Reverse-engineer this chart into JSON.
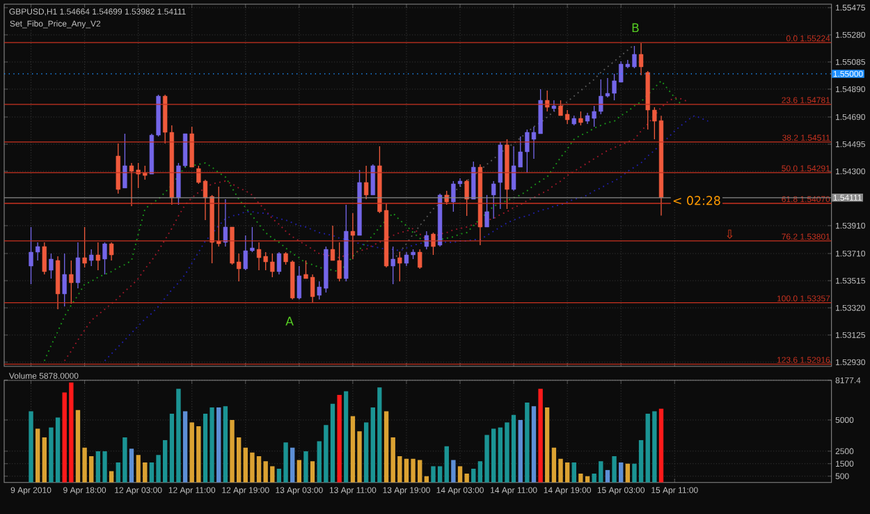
{
  "chart_data": [
    {
      "type": "candlestick",
      "title": "GBPUSD,H1  1.54664 1.54699 1.53982 1.54111",
      "subtitle": "Set_Fibo_Price_Any_V2",
      "categories": [
        null,
        null,
        null,
        null,
        null,
        null,
        null,
        null,
        null,
        null,
        null,
        null,
        null,
        null,
        null,
        null,
        null,
        null,
        null,
        null,
        null,
        null,
        null,
        null,
        null,
        null,
        null,
        null,
        null,
        null,
        null,
        null,
        null,
        null,
        null,
        null,
        null,
        null,
        null,
        null,
        null,
        null,
        null,
        null,
        null,
        null,
        null,
        null,
        null,
        null,
        null,
        null,
        null,
        null,
        null,
        null,
        null,
        null,
        null,
        null,
        null,
        null,
        null,
        null,
        null,
        null,
        null,
        null,
        null,
        null,
        null,
        null,
        null,
        null,
        null,
        null,
        null,
        null,
        null,
        null,
        null,
        null,
        null,
        null,
        null,
        null,
        null,
        null,
        null,
        null,
        null,
        null,
        null,
        null,
        null,
        null,
        null,
        null,
        null,
        null,
        null,
        null,
        null,
        null,
        null,
        null,
        null,
        null,
        null,
        null,
        null,
        null,
        null,
        null,
        null,
        null,
        null,
        null,
        null,
        null
      ],
      "ohlc": [
        [
          1.5362,
          1.539,
          1.5349,
          1.5372
        ],
        [
          1.5372,
          1.5379,
          1.5366,
          1.5376
        ],
        [
          1.5376,
          1.5379,
          1.5356,
          1.5358
        ],
        [
          1.5359,
          1.5371,
          1.5353,
          1.5367
        ],
        [
          1.5366,
          1.5369,
          1.5331,
          1.5342
        ],
        [
          1.5342,
          1.5371,
          1.5333,
          1.5356
        ],
        [
          1.5356,
          1.5366,
          1.5335,
          1.535
        ],
        [
          1.535,
          1.5379,
          1.5346,
          1.5368
        ],
        [
          1.5368,
          1.539,
          1.5361,
          1.5364
        ],
        [
          1.5366,
          1.5374,
          1.5362,
          1.537
        ],
        [
          1.537,
          1.5379,
          1.5359,
          1.5366
        ],
        [
          1.5367,
          1.5379,
          1.5356,
          1.5378
        ],
        [
          1.5378,
          1.5379,
          1.5366,
          1.537
        ],
        [
          1.5441,
          1.545,
          1.5414,
          1.5417
        ],
        [
          1.5418,
          1.5457,
          1.5418,
          1.5434
        ],
        [
          1.5434,
          1.5436,
          1.5405,
          1.543
        ],
        [
          1.5431,
          1.5436,
          1.5418,
          1.5428
        ],
        [
          1.5429,
          1.5434,
          1.5424,
          1.5427
        ],
        [
          1.5428,
          1.5457,
          1.5428,
          1.5456
        ],
        [
          1.5456,
          1.5485,
          1.5455,
          1.5484
        ],
        [
          1.5484,
          1.5485,
          1.545,
          1.5458
        ],
        [
          1.5458,
          1.5463,
          1.5406,
          1.5411
        ],
        [
          1.5411,
          1.5436,
          1.5406,
          1.5434
        ],
        [
          1.5434,
          1.5457,
          1.5433,
          1.5457
        ],
        [
          1.5457,
          1.5462,
          1.5433,
          1.5433
        ],
        [
          1.5432,
          1.5434,
          1.5421,
          1.5422
        ],
        [
          1.5423,
          1.5424,
          1.5395,
          1.5411
        ],
        [
          1.5412,
          1.5413,
          1.5364,
          1.5379
        ],
        [
          1.538,
          1.5419,
          1.5376,
          1.5378
        ],
        [
          1.5379,
          1.541,
          1.5376,
          1.539
        ],
        [
          1.539,
          1.539,
          1.5363,
          1.5364
        ],
        [
          1.5365,
          1.5371,
          1.5351,
          1.536
        ],
        [
          1.536,
          1.5384,
          1.5359,
          1.5373
        ],
        [
          1.5373,
          1.539,
          1.5372,
          1.5375
        ],
        [
          1.5374,
          1.5379,
          1.5359,
          1.5368
        ],
        [
          1.5369,
          1.5372,
          1.5359,
          1.5365
        ],
        [
          1.5365,
          1.5371,
          1.5354,
          1.5358
        ],
        [
          1.5358,
          1.5372,
          1.5356,
          1.5371
        ],
        [
          1.5371,
          1.5372,
          1.5363,
          1.5365
        ],
        [
          1.5365,
          1.5366,
          1.5338,
          1.5339
        ],
        [
          1.5339,
          1.5362,
          1.5338,
          1.5355
        ],
        [
          1.5356,
          1.5366,
          1.5353,
          1.5353
        ],
        [
          1.5354,
          1.5356,
          1.5336,
          1.534
        ],
        [
          1.5341,
          1.5351,
          1.5338,
          1.5347
        ],
        [
          1.5346,
          1.5376,
          1.5343,
          1.5374
        ],
        [
          1.5374,
          1.5391,
          1.5366,
          1.5366
        ],
        [
          1.5366,
          1.5379,
          1.5351,
          1.5353
        ],
        [
          1.5353,
          1.5406,
          1.5351,
          1.5387
        ],
        [
          1.5387,
          1.54,
          1.5367,
          1.5384
        ],
        [
          1.5384,
          1.5431,
          1.5384,
          1.5422
        ],
        [
          1.5422,
          1.5434,
          1.541,
          1.5413
        ],
        [
          1.5413,
          1.5435,
          1.5413,
          1.5434
        ],
        [
          1.5434,
          1.5448,
          1.54,
          1.5401
        ],
        [
          1.5402,
          1.5407,
          1.5361,
          1.5362
        ],
        [
          1.5362,
          1.5376,
          1.5349,
          1.5367
        ],
        [
          1.5368,
          1.5372,
          1.5351,
          1.5364
        ],
        [
          1.5364,
          1.5372,
          1.5362,
          1.537
        ],
        [
          1.537,
          1.5374,
          1.5367,
          1.5372
        ],
        [
          1.5372,
          1.5374,
          1.536,
          1.5361
        ],
        [
          1.5376,
          1.5387,
          1.5374,
          1.5384
        ],
        [
          1.5385,
          1.5386,
          1.537,
          1.5376
        ],
        [
          1.5377,
          1.5414,
          1.5376,
          1.5413
        ],
        [
          1.5413,
          1.5416,
          1.5406,
          1.5408
        ],
        [
          1.5408,
          1.5423,
          1.5401,
          1.5421
        ],
        [
          1.5421,
          1.5425,
          1.5419,
          1.5423
        ],
        [
          1.5423,
          1.5424,
          1.5398,
          1.541
        ],
        [
          1.541,
          1.5437,
          1.541,
          1.5433
        ],
        [
          1.5433,
          1.5435,
          1.5377,
          1.539
        ],
        [
          1.539,
          1.5413,
          1.539,
          1.5401
        ],
        [
          1.5413,
          1.5423,
          1.5396,
          1.5421
        ],
        [
          1.5422,
          1.5451,
          1.5403,
          1.5449
        ],
        [
          1.5449,
          1.5453,
          1.5403,
          1.5417
        ],
        [
          1.5417,
          1.5448,
          1.5416,
          1.5434
        ],
        [
          1.5433,
          1.5455,
          1.5433,
          1.5444
        ],
        [
          1.5444,
          1.546,
          1.5429,
          1.5458
        ],
        [
          1.5453,
          1.5462,
          1.5439,
          1.5458
        ],
        [
          1.5457,
          1.5489,
          1.5457,
          1.5481
        ],
        [
          1.5481,
          1.5488,
          1.5473,
          1.5476
        ],
        [
          1.5475,
          1.5481,
          1.5473,
          1.5477
        ],
        [
          1.5477,
          1.5481,
          1.547,
          1.547
        ],
        [
          1.5471,
          1.5474,
          1.5464,
          1.5467
        ],
        [
          1.5464,
          1.547,
          1.5463,
          1.5468
        ],
        [
          1.5468,
          1.5473,
          1.5463,
          1.5465
        ],
        [
          1.5466,
          1.5472,
          1.5464,
          1.547
        ],
        [
          1.5468,
          1.5477,
          1.5462,
          1.5473
        ],
        [
          1.5473,
          1.5496,
          1.5471,
          1.5484
        ],
        [
          1.5484,
          1.5497,
          1.5483,
          1.5486
        ],
        [
          1.5486,
          1.55,
          1.5481,
          1.5495
        ],
        [
          1.5494,
          1.5509,
          1.5494,
          1.5507
        ],
        [
          1.5505,
          1.551,
          1.5504,
          1.5507
        ],
        [
          1.5505,
          1.552,
          1.5504,
          1.5514
        ],
        [
          1.5514,
          1.5522,
          1.5499,
          1.5505
        ],
        [
          1.5501,
          1.5502,
          1.546,
          1.5474
        ],
        [
          1.5474,
          1.5476,
          1.5453,
          1.5466
        ],
        [
          1.54664,
          1.54699,
          1.53982,
          1.54111
        ],
        null,
        null,
        null,
        null,
        null,
        null,
        null,
        null,
        null,
        null,
        null,
        null,
        null,
        null,
        null,
        null,
        null,
        null,
        null,
        null,
        null,
        null,
        null,
        null,
        null
      ],
      "colors": [
        "#7466e8",
        "#7466e8",
        "#f05a3c",
        "#7466e8",
        "#f05a3c",
        "#7466e8",
        "#f05a3c",
        "#7466e8",
        "#f05a3c",
        "#7466e8",
        "#f05a3c",
        "#7466e8",
        "#f05a3c",
        "#f05a3c",
        "#7466e8",
        "#f05a3c",
        "#f05a3c",
        "#f05a3c",
        "#7466e8",
        "#7466e8",
        "#f05a3c",
        "#f05a3c",
        "#7466e8",
        "#7466e8",
        "#f05a3c",
        "#f05a3c",
        "#f05a3c",
        "#f05a3c",
        "#f05a3c",
        "#7466e8",
        "#f05a3c",
        "#f05a3c",
        "#7466e8",
        "#7466e8",
        "#f05a3c",
        "#f05a3c",
        "#f05a3c",
        "#7466e8",
        "#f05a3c",
        "#f05a3c",
        "#7466e8",
        "#f05a3c",
        "#f05a3c",
        "#7466e8",
        "#7466e8",
        "#f05a3c",
        "#f05a3c",
        "#7466e8",
        "#f05a3c",
        "#7466e8",
        "#f05a3c",
        "#7466e8",
        "#f05a3c",
        "#f05a3c",
        "#7466e8",
        "#f05a3c",
        "#7466e8",
        "#7466e8",
        "#f05a3c",
        "#7466e8",
        "#f05a3c",
        "#7466e8",
        "#f05a3c",
        "#7466e8",
        "#7466e8",
        "#f05a3c",
        "#7466e8",
        "#f05a3c",
        "#7466e8",
        "#7466e8",
        "#7466e8",
        "#f05a3c",
        "#7466e8",
        "#7466e8",
        "#7466e8",
        "#7466e8",
        "#7466e8",
        "#f05a3c",
        "#7466e8",
        "#f05a3c",
        "#f05a3c",
        "#7466e8",
        "#f05a3c",
        "#7466e8",
        "#7466e8",
        "#7466e8",
        "#7466e8",
        "#7466e8",
        "#7466e8",
        "#7466e8",
        "#7466e8",
        "#f05a3c",
        "#f05a3c",
        "#f05a3c",
        "#f05a3c",
        null,
        null,
        null,
        null,
        null,
        null,
        null,
        null,
        null,
        null,
        null,
        null,
        null,
        null,
        null,
        null,
        null,
        null,
        null,
        null,
        null,
        null,
        null,
        null,
        null
      ],
      "series": [
        {
          "type": "line",
          "color": "#1a9a1a",
          "line_style": "dotted",
          "values": [
            null,
            null,
            1.5294,
            1.5305,
            1.5315,
            1.5326,
            1.5334,
            1.5341,
            1.5349,
            1.5351,
            1.5354,
            1.5356,
            1.5358,
            1.5361,
            1.5363,
            1.5366,
            1.5385,
            1.5403,
            1.5407,
            1.541,
            1.5415,
            1.542,
            1.5427,
            1.5433,
            1.5434,
            1.5435,
            1.5436,
            1.5433,
            1.5429,
            1.5426,
            1.5418,
            1.541,
            1.5404,
            1.5398,
            1.5392,
            1.5386,
            1.5382,
            1.5379,
            1.5375,
            1.5371,
            1.5368,
            1.5364,
            1.5363,
            1.5361,
            1.536,
            1.5359,
            1.5358,
            1.5363,
            1.5369,
            1.5374,
            1.5379,
            1.5384,
            1.539,
            1.5395,
            1.54,
            1.5395,
            1.5391,
            1.5386,
            1.5382,
            1.5378,
            1.5379,
            1.5381,
            1.5382,
            1.5383,
            1.5385,
            1.5386,
            1.5391,
            1.5396,
            1.54,
            1.5405,
            1.5407,
            1.5409,
            1.5411,
            1.5413,
            1.5416,
            1.542,
            1.5423,
            1.5426,
            1.5433,
            1.544,
            1.5446,
            1.5453,
            1.5456,
            1.5458,
            1.5461,
            1.5463,
            1.5465,
            1.5466,
            1.547,
            1.5473,
            1.5477,
            1.548,
            1.5485,
            1.549,
            1.5495,
            1.5489,
            1.5483,
            1.5478,
            null,
            null,
            null,
            null,
            null,
            null,
            null,
            null,
            null,
            null,
            null,
            null,
            null,
            null,
            null,
            null,
            null,
            null,
            null,
            null,
            null,
            null
          ]
        },
        {
          "type": "line",
          "color": "#a0182a",
          "line_style": "dotted",
          "values": [
            null,
            null,
            null,
            null,
            null,
            1.5294,
            1.5301,
            1.5309,
            1.5316,
            1.5323,
            1.5327,
            1.5331,
            1.5335,
            1.5339,
            1.5344,
            1.5348,
            1.5353,
            1.536,
            1.5366,
            1.5373,
            1.5381,
            1.5389,
            1.5398,
            1.5406,
            1.5411,
            1.5415,
            1.5418,
            1.5421,
            1.5422,
            1.5423,
            1.5421,
            1.5418,
            1.5416,
            1.5413,
            1.5407,
            1.5402,
            1.5396,
            1.5392,
            1.5387,
            1.5383,
            1.538,
            1.5377,
            1.5374,
            1.5371,
            1.537,
            1.5369,
            1.5368,
            1.537,
            1.5371,
            1.5373,
            1.5374,
            1.5377,
            1.5379,
            1.5382,
            1.5384,
            1.5386,
            1.5387,
            1.5389,
            1.5385,
            1.5381,
            1.5383,
            1.5385,
            1.5386,
            1.5388,
            1.5389,
            1.539,
            1.5392,
            1.5393,
            1.5395,
            1.5396,
            1.5399,
            1.5401,
            1.5404,
            1.5406,
            1.5409,
            1.5411,
            1.5414,
            1.5416,
            1.542,
            1.5423,
            1.5427,
            1.543,
            1.5433,
            1.5436,
            1.5439,
            1.5442,
            1.5445,
            1.5447,
            1.5449,
            1.5451,
            1.5453,
            1.5459,
            1.5464,
            1.547,
            1.5476,
            1.548,
            1.5483,
            1.5482,
            1.548,
            null,
            null,
            null,
            null,
            null,
            null,
            null,
            null,
            null,
            null,
            null,
            null,
            null,
            null,
            null,
            null,
            null,
            null,
            null,
            null,
            null
          ]
        },
        {
          "type": "line",
          "color": "#2020a8",
          "line_style": "dotted",
          "values": [
            null,
            null,
            null,
            null,
            null,
            null,
            null,
            null,
            null,
            null,
            null,
            1.5294,
            1.5299,
            1.5304,
            1.5309,
            1.5314,
            1.5319,
            1.5324,
            1.5328,
            1.5333,
            1.5339,
            1.5345,
            1.535,
            1.5356,
            1.5364,
            1.5372,
            1.538,
            1.5385,
            1.5391,
            1.5396,
            1.5398,
            1.5399,
            1.5401,
            1.5401,
            1.54,
            1.54,
            1.5398,
            1.5396,
            1.5395,
            1.5393,
            1.5391,
            1.539,
            1.5388,
            1.5386,
            1.5385,
            1.5384,
            1.5382,
            1.5381,
            1.538,
            1.5378,
            1.5377,
            1.5376,
            1.5375,
            1.5374,
            1.5374,
            1.5373,
            1.5375,
            1.5377,
            1.5378,
            1.538,
            1.538,
            1.538,
            1.5379,
            1.5379,
            1.538,
            1.538,
            1.5381,
            1.5381,
            1.5384,
            1.5387,
            1.539,
            1.5393,
            1.5395,
            1.5397,
            1.5398,
            1.54,
            1.5402,
            1.5403,
            1.5405,
            1.5406,
            1.5408,
            1.541,
            1.5411,
            1.5413,
            1.5416,
            1.5418,
            1.5421,
            1.5423,
            1.5426,
            1.543,
            1.5433,
            1.5436,
            1.5441,
            1.5445,
            1.545,
            1.5454,
            1.5459,
            1.5463,
            1.5467,
            1.547,
            1.5468,
            1.5466,
            null,
            null,
            null,
            null,
            null,
            null,
            null,
            null,
            null,
            null,
            null,
            null,
            null,
            null,
            null,
            null,
            null,
            null
          ]
        },
        {
          "type": "line",
          "color": "#5a5a5a",
          "line_style": "dotted",
          "values": [
            null,
            null,
            null,
            null,
            null,
            null,
            null,
            null,
            null,
            null,
            null,
            null,
            null,
            null,
            null,
            null,
            null,
            null,
            null,
            null,
            null,
            null,
            null,
            null,
            null,
            null,
            null,
            null,
            null,
            null,
            null,
            null,
            null,
            null,
            null,
            null,
            null,
            null,
            null,
            null,
            null,
            null,
            null,
            null,
            null,
            null,
            null,
            null,
            null,
            null,
            null,
            null,
            null,
            null,
            1.5366,
            1.5372,
            1.5378,
            1.5385,
            1.5391,
            1.5397,
            1.5403,
            1.5407,
            1.5411,
            1.5415,
            1.5419,
            1.5423,
            1.5427,
            1.5431,
            1.5435,
            1.5439,
            1.5443,
            1.5447,
            1.545,
            1.5454,
            1.5458,
            1.5462,
            1.5465,
            1.5469,
            1.5473,
            1.5476,
            1.548,
            1.5484,
            1.5488,
            1.5492,
            1.5496,
            1.5501,
            1.5505,
            1.5509,
            1.5513,
            1.5517,
            1.5521,
            null,
            null,
            null,
            null,
            null,
            null,
            null,
            null,
            null,
            null,
            null,
            null,
            null,
            null,
            null,
            null,
            null,
            null,
            null,
            null,
            null,
            null,
            null,
            null,
            null,
            null,
            null,
            null,
            null
          ]
        }
      ],
      "ylim": [
        1.529,
        1.555
      ],
      "yticks": [
        1.55475,
        {
          "value": 1.5528,
          "label": "1.55280"
        },
        1.55085,
        {
          "value": 1.5489,
          "label": "1.54890"
        },
        {
          "value": 1.5469,
          "label": "1.54690"
        },
        1.54495,
        {
          "value": 1.543,
          "label": "1.54300"
        },
        {
          "value": 1.5391,
          "label": "1.53910"
        },
        {
          "value": 1.5371,
          "label": "1.53710"
        },
        1.53515,
        {
          "value": 1.5332,
          "label": "1.53320"
        },
        1.53125,
        {
          "value": 1.5293,
          "label": "1.52930"
        }
      ],
      "tick_labels": "y",
      "grid": true,
      "ref_lines": [
        {
          "axis": "y",
          "value": 1.55224,
          "label": "0.0  1.55224",
          "color": "#c83220"
        },
        {
          "axis": "y",
          "value": 1.54781,
          "label": "23.6  1.54781",
          "color": "#c83220"
        },
        {
          "axis": "y",
          "value": 1.54511,
          "label": "38.2  1.54511",
          "color": "#c83220"
        },
        {
          "axis": "y",
          "value": 1.54291,
          "label": "50.0  1.54291",
          "color": "#c83220"
        },
        {
          "axis": "y",
          "value": 1.5407,
          "label": "61.8  1.54070",
          "color": "#c83220"
        },
        {
          "axis": "y",
          "value": 1.53801,
          "label": "76.2  1.53801",
          "color": "#c83220"
        },
        {
          "axis": "y",
          "value": 1.53357,
          "label": "100.0  1.53357",
          "color": "#c83220"
        },
        {
          "axis": "y",
          "value": 1.52916,
          "label": "123.6  1.52916",
          "color": "#c83220"
        },
        {
          "axis": "y",
          "value": 1.55,
          "label": "1.55000",
          "color": "#1e90ff",
          "line_style": "dotted"
        },
        {
          "axis": "y",
          "value": 1.54111,
          "label": "1.54111",
          "color": "#8a8a8a",
          "line_style": "solid"
        }
      ],
      "annotations": [
        "A",
        "B",
        "< 02:28",
        "⇩"
      ]
    },
    {
      "type": "bar",
      "title": "Volume 5878.0000",
      "categories": [
        "9 Apr 2010",
        null,
        null,
        null,
        null,
        null,
        null,
        null,
        "9 Apr 18:00",
        null,
        null,
        null,
        null,
        null,
        null,
        null,
        "12 Apr 03:00",
        null,
        null,
        null,
        null,
        null,
        null,
        null,
        "12 Apr 11:00",
        null,
        null,
        null,
        null,
        null,
        null,
        null,
        "12 Apr 19:00",
        null,
        null,
        null,
        null,
        null,
        null,
        null,
        "13 Apr 03:00",
        null,
        null,
        null,
        null,
        null,
        null,
        null,
        "13 Apr 11:00",
        null,
        null,
        null,
        null,
        null,
        null,
        null,
        "13 Apr 19:00",
        null,
        null,
        null,
        null,
        null,
        null,
        null,
        "14 Apr 03:00",
        null,
        null,
        null,
        null,
        null,
        null,
        null,
        "14 Apr 11:00",
        null,
        null,
        null,
        null,
        null,
        null,
        null,
        "14 Apr 19:00",
        null,
        null,
        null,
        null,
        null,
        null,
        null,
        "15 Apr 03:00",
        null,
        null,
        null,
        null,
        null,
        null,
        null,
        "15 Apr 11:00",
        null,
        null,
        null,
        null,
        null,
        null,
        null,
        null,
        null,
        null,
        null,
        null,
        null,
        null,
        null,
        null,
        null,
        null,
        null,
        null,
        null,
        null,
        null
      ],
      "values": [
        5700,
        4300,
        3600,
        4400,
        5200,
        7200,
        8000,
        5800,
        2800,
        2100,
        2500,
        2500,
        900,
        1600,
        3600,
        2700,
        2200,
        1600,
        1600,
        2200,
        3400,
        5500,
        7500,
        5700,
        4800,
        4500,
        5500,
        6000,
        6000,
        6100,
        5000,
        3600,
        2800,
        2400,
        2100,
        1700,
        1300,
        1100,
        3200,
        2800,
        1800,
        2500,
        1700,
        3300,
        4600,
        6300,
        7000,
        7300,
        5300,
        4100,
        4800,
        6000,
        7600,
        5700,
        3600,
        2100,
        1900,
        1900,
        1800,
        500,
        1300,
        1300,
        2900,
        1800,
        1300,
        700,
        1100,
        1700,
        3800,
        4300,
        4400,
        4800,
        5400,
        5000,
        6400,
        6100,
        7500,
        6000,
        2800,
        1900,
        1600,
        1600,
        700,
        500,
        700,
        1700,
        1000,
        2100,
        1600,
        1500,
        1500,
        3400,
        5500,
        5700,
        5900,
        null,
        null,
        null,
        null,
        null,
        null,
        null,
        null,
        null,
        null,
        null,
        null,
        null,
        null,
        null,
        null,
        null,
        null,
        null,
        null,
        null,
        null,
        null,
        null,
        null
      ],
      "colors": [
        "#1b9494",
        "#dba232",
        "#dba232",
        "#1b9494",
        "#1b9494",
        "#ff1a1a",
        "#ff1a1a",
        "#dba232",
        "#dba232",
        "#dba232",
        "#1b9494",
        "#1b9494",
        "#dba232",
        "#1b9494",
        "#1b9494",
        "#5d8fd6",
        "#dba232",
        "#dba232",
        "#1b9494",
        "#1b9494",
        "#1b9494",
        "#1b9494",
        "#1b9494",
        "#5d8fd6",
        "#dba232",
        "#dba232",
        "#1b9494",
        "#1b9494",
        "#5d8fd6",
        "#1b9494",
        "#dba232",
        "#dba232",
        "#dba232",
        "#dba232",
        "#dba232",
        "#dba232",
        "#dba232",
        "#1b9494",
        "#1b9494",
        "#5d8fd6",
        "#dba232",
        "#1b9494",
        "#dba232",
        "#1b9494",
        "#1b9494",
        "#1b9494",
        "#ff1a1a",
        "#1b9494",
        "#dba232",
        "#dba232",
        "#1b9494",
        "#1b9494",
        "#1b9494",
        "#dba232",
        "#dba232",
        "#dba232",
        "#dba232",
        "#dba232",
        "#dba232",
        "#dba232",
        "#1b9494",
        "#1b9494",
        "#1b9494",
        "#5d8fd6",
        "#dba232",
        "#dba232",
        "#1b9494",
        "#1b9494",
        "#1b9494",
        "#1b9494",
        "#1b9494",
        "#1b9494",
        "#1b9494",
        "#5d8fd6",
        "#1b9494",
        "#5d8fd6",
        "#ff1a1a",
        "#dba232",
        "#dba232",
        "#dba232",
        "#dba232",
        "#1b9494",
        "#dba232",
        "#dba232",
        "#1b9494",
        "#1b9494",
        "#5d8fd6",
        "#1b9494",
        "#5d8fd6",
        "#dba232",
        "#1b9494",
        "#1b9494",
        "#1b9494",
        "#1b9494",
        "#ff1a1a",
        null,
        null,
        null,
        null,
        null,
        null,
        null,
        null,
        null,
        null,
        null,
        null,
        null,
        null,
        null,
        null,
        null,
        null,
        null,
        null,
        null,
        null,
        null,
        null,
        null
      ],
      "ylim": [
        0,
        8177.4
      ],
      "yticks": [
        8177.4,
        5000,
        2500,
        1500,
        500
      ],
      "grid": true
    }
  ]
}
